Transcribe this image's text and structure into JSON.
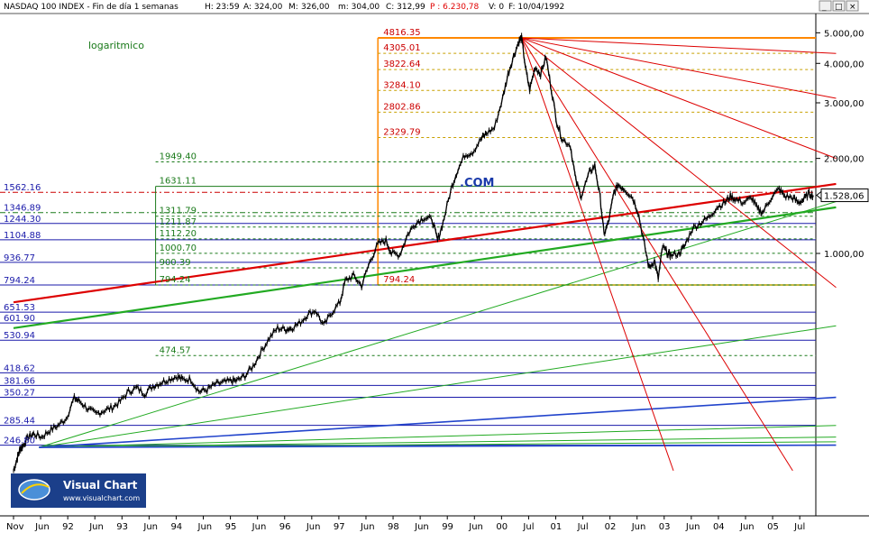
{
  "header": {
    "symbol": "NASDAQ 100 INDEX - Fin de día 1 semanas",
    "h": "H: 23:59",
    "a": "A: 324,00",
    "m_max": "326,00",
    "m_label": "M:",
    "min": "m: 304,00",
    "c": "C: 312,99",
    "p": "P : 6.230,78",
    "v": "V: 0",
    "f": "F: 10/04/1992"
  },
  "window_buttons": {
    "min": "_",
    "max": "□",
    "close": "×"
  },
  "scale_label": "logaritmico",
  "annotation_com": ".COM",
  "watermark": {
    "title": "Visual Chart",
    "url": "www.visualchart.com"
  },
  "colors": {
    "price": "#000000",
    "fib_high": "#cc0000",
    "fib_low": "#1a7a1a",
    "blue_levels": "#1a1aaa",
    "frame_orange": "#ff8800",
    "fan_red": "#dd0000",
    "fan_green": "#22aa22",
    "blue_trend": "#2244cc",
    "last_price_bg": "#ffffff"
  },
  "chart_data": {
    "type": "line",
    "title": "NASDAQ 100 INDEX - Fin de día 1 semanas",
    "scale": "log",
    "ylim": [
      205,
      5500
    ],
    "y_ticks": [
      {
        "value": 1000,
        "label": "1.000,00"
      },
      {
        "value": 2000,
        "label": "2.000,00"
      },
      {
        "value": 3000,
        "label": "3.000,00"
      },
      {
        "value": 4000,
        "label": "4.000,00"
      },
      {
        "value": 5000,
        "label": "5.000,00"
      }
    ],
    "x_ticks": [
      "Nov",
      "Jun",
      "92",
      "Jun",
      "93",
      "Jun",
      "94",
      "Jun",
      "95",
      "Jun",
      "96",
      "Jun",
      "97",
      "Jun",
      "98",
      "Jun",
      "99",
      "Jun",
      "00",
      "Jul",
      "01",
      "Jul",
      "02",
      "Jun",
      "03",
      "Jun",
      "04",
      "Jun",
      "05",
      "Jul"
    ],
    "last_price_label": "1.528,06",
    "last_price": 1528.06,
    "price_series": [
      [
        1990.83,
        205
      ],
      [
        1990.9,
        225
      ],
      [
        1990.95,
        240
      ],
      [
        1991.0,
        245
      ],
      [
        1991.1,
        262
      ],
      [
        1991.2,
        268
      ],
      [
        1991.35,
        262
      ],
      [
        1991.5,
        275
      ],
      [
        1991.65,
        285
      ],
      [
        1991.8,
        300
      ],
      [
        1991.95,
        348
      ],
      [
        1992.05,
        340
      ],
      [
        1992.2,
        322
      ],
      [
        1992.35,
        310
      ],
      [
        1992.5,
        318
      ],
      [
        1992.65,
        325
      ],
      [
        1992.8,
        340
      ],
      [
        1992.95,
        365
      ],
      [
        1993.1,
        375
      ],
      [
        1993.25,
        360
      ],
      [
        1993.4,
        380
      ],
      [
        1993.55,
        390
      ],
      [
        1993.7,
        400
      ],
      [
        1993.85,
        408
      ],
      [
        1993.95,
        398
      ],
      [
        1994.1,
        400
      ],
      [
        1994.25,
        365
      ],
      [
        1994.4,
        370
      ],
      [
        1994.55,
        385
      ],
      [
        1994.7,
        390
      ],
      [
        1994.85,
        395
      ],
      [
        1994.95,
        395
      ],
      [
        1995.1,
        410
      ],
      [
        1995.25,
        440
      ],
      [
        1995.4,
        490
      ],
      [
        1995.55,
        540
      ],
      [
        1995.7,
        580
      ],
      [
        1995.85,
        575
      ],
      [
        1995.95,
        580
      ],
      [
        1996.1,
        600
      ],
      [
        1996.25,
        640
      ],
      [
        1996.4,
        660
      ],
      [
        1996.55,
        590
      ],
      [
        1996.7,
        650
      ],
      [
        1996.85,
        700
      ],
      [
        1996.95,
        820
      ],
      [
        1997.1,
        850
      ],
      [
        1997.25,
        790
      ],
      [
        1997.4,
        940
      ],
      [
        1997.55,
        1070
      ],
      [
        1997.7,
        1100
      ],
      [
        1997.8,
        1000
      ],
      [
        1997.95,
        990
      ],
      [
        1998.1,
        1150
      ],
      [
        1998.25,
        1250
      ],
      [
        1998.4,
        1300
      ],
      [
        1998.55,
        1280
      ],
      [
        1998.65,
        1100
      ],
      [
        1998.75,
        1250
      ],
      [
        1998.9,
        1600
      ],
      [
        1999.0,
        1800
      ],
      [
        1999.15,
        2050
      ],
      [
        1999.3,
        2100
      ],
      [
        1999.45,
        2300
      ],
      [
        1999.55,
        2400
      ],
      [
        1999.7,
        2500
      ],
      [
        1999.85,
        3100
      ],
      [
        1999.95,
        3700
      ],
      [
        2000.05,
        4200
      ],
      [
        2000.15,
        4700
      ],
      [
        2000.2,
        4816
      ],
      [
        2000.28,
        3800
      ],
      [
        2000.35,
        3300
      ],
      [
        2000.45,
        3900
      ],
      [
        2000.55,
        3700
      ],
      [
        2000.65,
        4200
      ],
      [
        2000.75,
        3300
      ],
      [
        2000.85,
        2600
      ],
      [
        2000.95,
        2300
      ],
      [
        2001.1,
        2200
      ],
      [
        2001.2,
        1700
      ],
      [
        2001.3,
        1520
      ],
      [
        2001.45,
        1800
      ],
      [
        2001.55,
        1900
      ],
      [
        2001.65,
        1500
      ],
      [
        2001.72,
        1150
      ],
      [
        2001.8,
        1250
      ],
      [
        2001.9,
        1550
      ],
      [
        2001.98,
        1650
      ],
      [
        2002.1,
        1600
      ],
      [
        2002.25,
        1500
      ],
      [
        2002.35,
        1350
      ],
      [
        2002.45,
        1100
      ],
      [
        2002.55,
        900
      ],
      [
        2002.65,
        950
      ],
      [
        2002.72,
        830
      ],
      [
        2002.8,
        1050
      ],
      [
        2002.9,
        1000
      ],
      [
        2002.95,
        985
      ],
      [
        2003.1,
        1000
      ],
      [
        2003.2,
        1050
      ],
      [
        2003.35,
        1200
      ],
      [
        2003.5,
        1250
      ],
      [
        2003.65,
        1300
      ],
      [
        2003.8,
        1400
      ],
      [
        2003.95,
        1450
      ],
      [
        2004.05,
        1520
      ],
      [
        2004.15,
        1480
      ],
      [
        2004.3,
        1450
      ],
      [
        2004.45,
        1500
      ],
      [
        2004.55,
        1380
      ],
      [
        2004.65,
        1350
      ],
      [
        2004.8,
        1500
      ],
      [
        2004.95,
        1600
      ],
      [
        2005.05,
        1520
      ],
      [
        2005.2,
        1500
      ],
      [
        2005.3,
        1450
      ],
      [
        2005.4,
        1480
      ],
      [
        2005.5,
        1550
      ],
      [
        2005.58,
        1528
      ]
    ],
    "fib_levels_high": [
      {
        "value": 4816.35,
        "label": "4816.35"
      },
      {
        "value": 4305.01,
        "label": "4305.01"
      },
      {
        "value": 3822.64,
        "label": "3822.64"
      },
      {
        "value": 3284.1,
        "label": "3284.10"
      },
      {
        "value": 2802.86,
        "label": "2802.86"
      },
      {
        "value": 2329.79,
        "label": "2329.79"
      }
    ],
    "fib_levels_low": [
      {
        "value": 1949.4,
        "label": "1949.40"
      },
      {
        "value": 1631.11,
        "label": "1631.11"
      },
      {
        "value": 1311.79,
        "label": "1311.79"
      },
      {
        "value": 1211.87,
        "label": "1211.87"
      },
      {
        "value": 1112.2,
        "label": "1112.20"
      },
      {
        "value": 1000.7,
        "label": "1000.70"
      },
      {
        "value": 900.39,
        "label": "900.39"
      },
      {
        "value": 794.24,
        "label": "794.24"
      },
      {
        "value": 474.57,
        "label": "474.57"
      }
    ],
    "left_levels": [
      {
        "value": 1562.16,
        "label": "1562.16"
      },
      {
        "value": 1346.89,
        "label": "1346.89"
      },
      {
        "value": 1244.3,
        "label": "1244.30"
      },
      {
        "value": 1104.88,
        "label": "1104.88"
      },
      {
        "value": 936.77,
        "label": "936.77"
      },
      {
        "value": 794.24,
        "label": "794.24"
      },
      {
        "value": 651.53,
        "label": "651.53"
      },
      {
        "value": 601.9,
        "label": "601.90"
      },
      {
        "value": 530.94,
        "label": "530.94"
      },
      {
        "value": 418.62,
        "label": "418.62"
      },
      {
        "value": 381.66,
        "label": "381.66"
      },
      {
        "value": 350.27,
        "label": "350.27"
      },
      {
        "value": 285.44,
        "label": "285.44"
      },
      {
        "value": 246.8,
        "label": "246.80"
      }
    ],
    "orange_box_label": "794.24",
    "red_trend": [
      [
        1990.83,
        700
      ],
      [
        2006.0,
        1660
      ]
    ],
    "green_trend": [
      [
        1990.83,
        580
      ],
      [
        2006.0,
        1400
      ]
    ],
    "green_fan_origin": [
      1991.3,
      243
    ],
    "green_fan_ends": [
      [
        2006.0,
        1460
      ],
      [
        2006.0,
        590
      ],
      [
        2006.0,
        350
      ],
      [
        2006.0,
        285
      ],
      [
        2006.0,
        262
      ],
      [
        2006.0,
        253
      ],
      [
        2006.0,
        247
      ]
    ],
    "red_fan_origin": [
      2000.2,
      4816
    ],
    "red_fan_ends": [
      [
        2006.0,
        4300
      ],
      [
        2006.0,
        3100
      ],
      [
        2006.0,
        2000
      ],
      [
        2006.0,
        780
      ],
      [
        2005.2,
        205
      ],
      [
        2003.0,
        205
      ]
    ]
  }
}
